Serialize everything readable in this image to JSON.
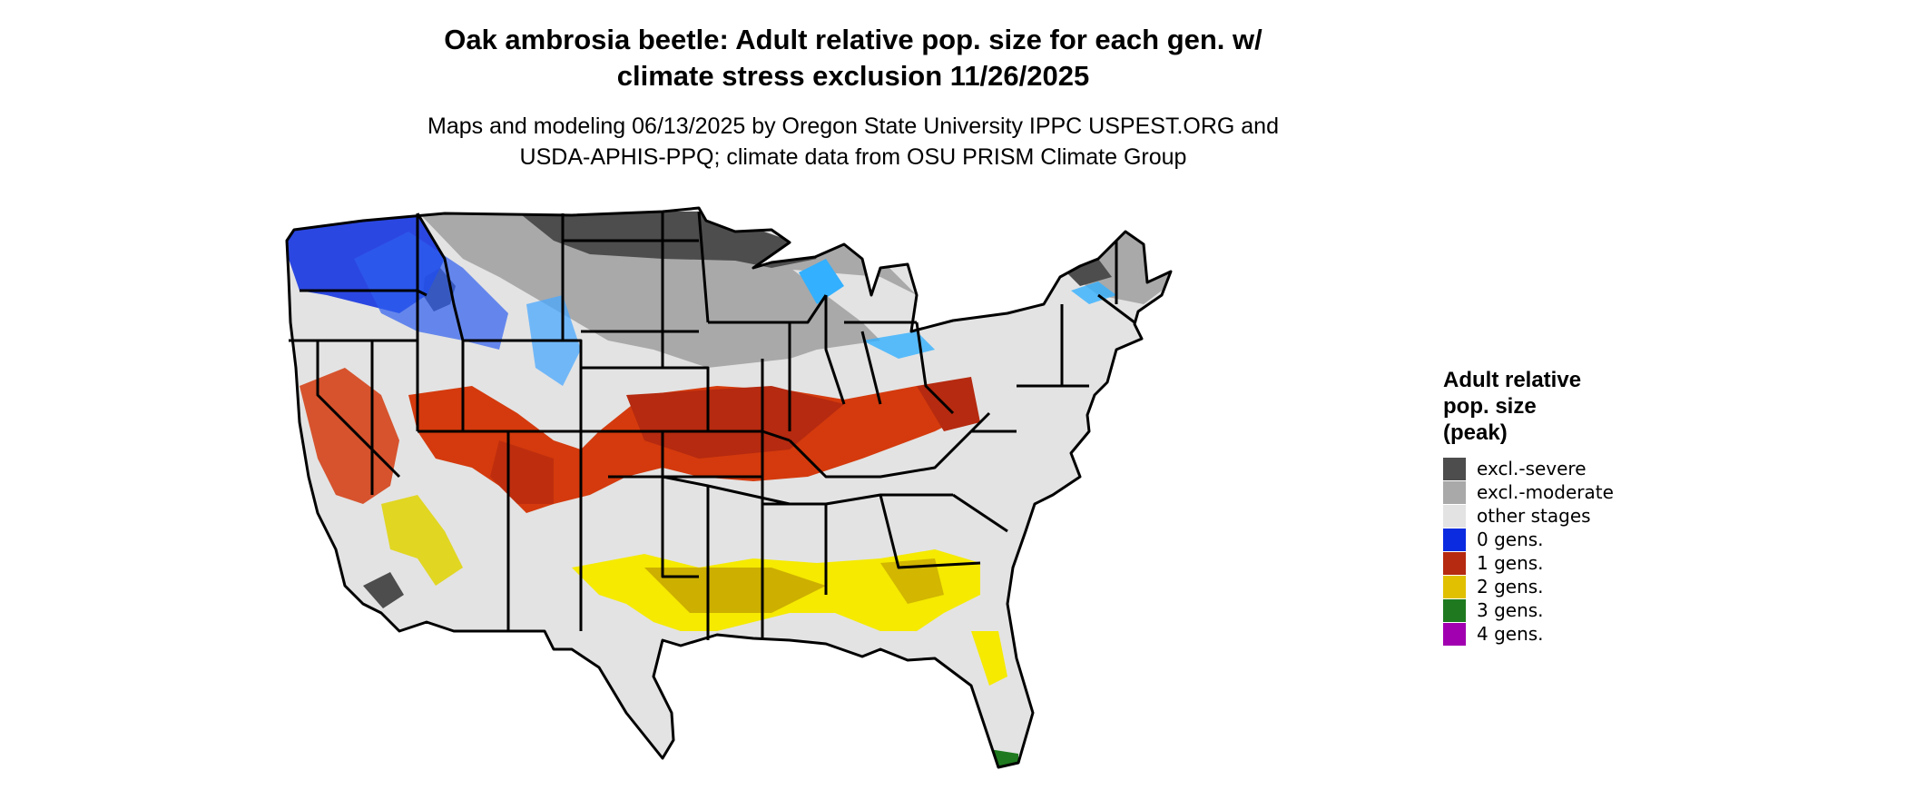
{
  "title_lines": [
    "Oak ambrosia beetle: Adult relative pop. size for each gen. w/",
    "climate stress exclusion 11/26/2025"
  ],
  "subtitle_lines": [
    "Maps and modeling 06/13/2025 by Oregon State University IPPC USPEST.ORG and",
    "USDA-APHIS-PPQ; climate data from OSU PRISM Climate Group"
  ],
  "legend": {
    "title_lines": [
      "Adult relative",
      "pop. size",
      "(peak)"
    ],
    "items": [
      {
        "label": "excl.-severe",
        "color": "#4d4d4d"
      },
      {
        "label": "excl.-moderate",
        "color": "#a9a9a9"
      },
      {
        "label": "other stages",
        "color": "#e3e3e3"
      },
      {
        "label": "0 gens.",
        "color": "#0a2be0"
      },
      {
        "label": "1 gens.",
        "color": "#b52a10"
      },
      {
        "label": "2 gens.",
        "color": "#e0c000"
      },
      {
        "label": "3 gens.",
        "color": "#1f7a1f"
      },
      {
        "label": "4 gens.",
        "color": "#a100b0"
      }
    ]
  }
}
